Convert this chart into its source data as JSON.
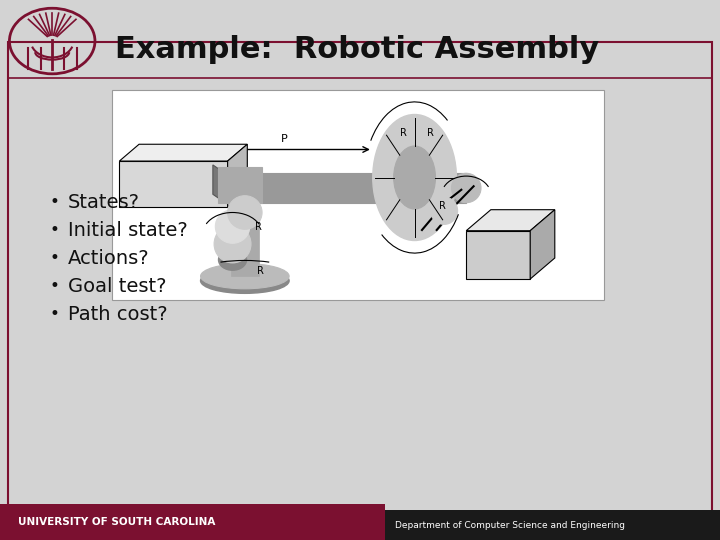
{
  "title": "Example:  Robotic Assembly",
  "slide_bg": "#d3d3d3",
  "title_color": "#111111",
  "title_fontsize": 22,
  "bullet_items": [
    "States?",
    "Initial state?",
    "Actions?",
    "Goal test?",
    "Path cost?"
  ],
  "bullet_fontsize": 14,
  "bullet_color": "#111111",
  "footer_left_text": "UNIVERSITY OF SOUTH CAROLINA",
  "footer_left_bg": "#7b1030",
  "footer_right_text": "Department of Computer Science and Engineering",
  "footer_right_bg": "#1a1a1a",
  "footer_text_color": "#ffffff",
  "border_color": "#7b1030",
  "image_bg": "#ffffff"
}
